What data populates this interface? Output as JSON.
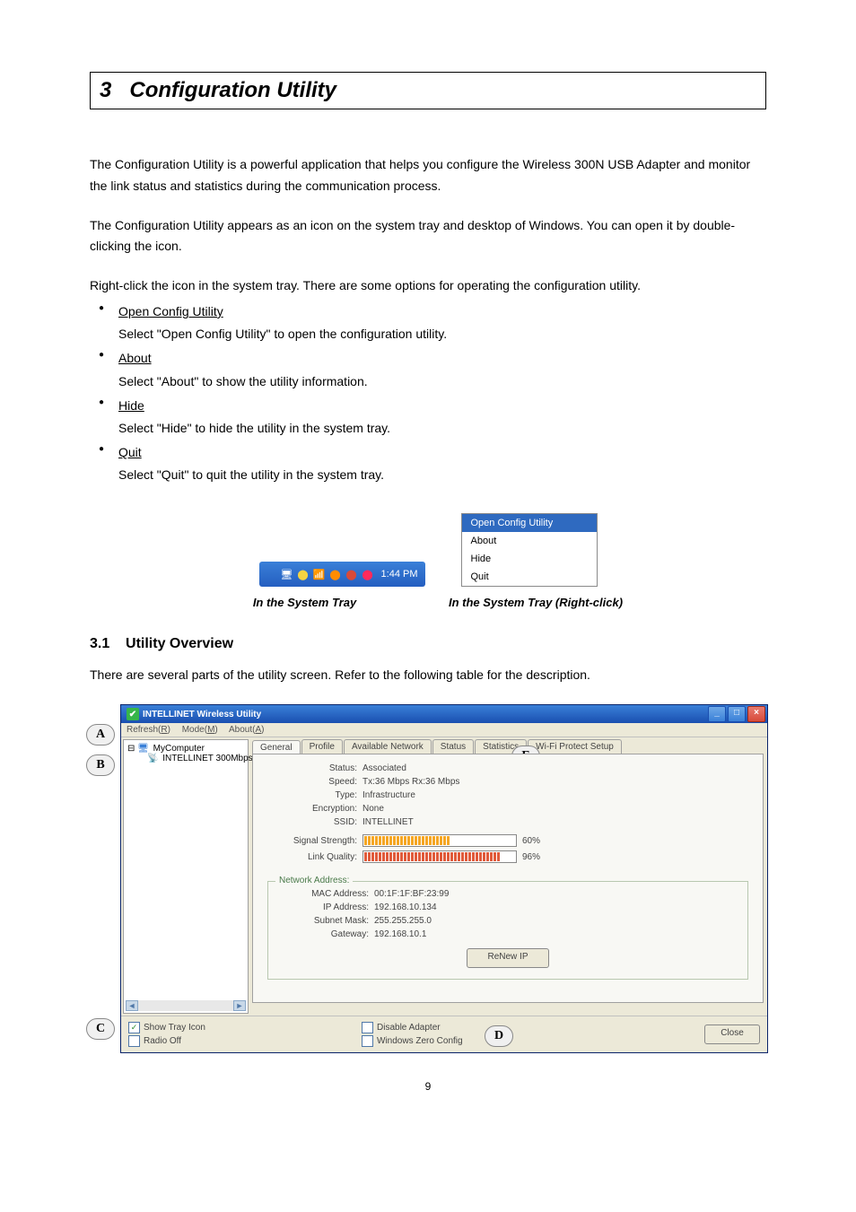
{
  "chapter": {
    "number": "3",
    "title": "Configuration Utility"
  },
  "intro1": "The Configuration Utility is a powerful application that helps you configure the Wireless 300N USB Adapter and monitor the link status and statistics during the communication process.",
  "intro2": "The Configuration Utility appears as an icon on the system tray and desktop of Windows. You can open it by double-clicking the icon.",
  "intro3": "Right-click the icon in the system tray. There are some options for operating the configuration utility.",
  "options": [
    {
      "name": "Open Config Utility",
      "desc": "Select \"Open Config Utility\" to open the configuration utility."
    },
    {
      "name": "About",
      "desc": "Select \"About\" to show the utility information."
    },
    {
      "name": "Hide",
      "desc": "Select \"Hide\" to hide the utility in the system tray."
    },
    {
      "name": "Quit",
      "desc": "Select \"Quit\" to quit the utility in the system tray."
    }
  ],
  "systray": {
    "time": "1:44 PM",
    "icon_colors": [
      "#ffffff",
      "#f5d442",
      "#36b54a",
      "#ff8c00",
      "#d84a3a",
      "#ff2a5c"
    ]
  },
  "context_menu": {
    "items": [
      "Open Config Utility",
      "About",
      "Hide",
      "Quit"
    ],
    "highlighted_index": 0
  },
  "captions": {
    "left": "In the System Tray",
    "right": "In the System Tray (Right-click)"
  },
  "section": {
    "number": "3.1",
    "title": "Utility Overview"
  },
  "section_intro": "There are several parts of the utility screen. Refer to the following table for the description.",
  "markers": {
    "A": "A",
    "B": "B",
    "C": "C",
    "D": "D",
    "E": "E"
  },
  "util": {
    "title": "INTELLINET Wireless Utility",
    "menubar": {
      "refresh": "Refresh(R)",
      "mode": "Mode(M)",
      "about": "About(A)",
      "underline": {
        "r": "R",
        "m": "M",
        "a": "A"
      }
    },
    "tree": {
      "root": "MyComputer",
      "child": "INTELLINET 300Mbps '"
    },
    "tabs": [
      "General",
      "Profile",
      "Available Network",
      "Status",
      "Statistics",
      "Wi-Fi Protect Setup"
    ],
    "active_tab": 0,
    "general": {
      "status_label": "Status:",
      "status_value": "Associated",
      "speed_label": "Speed:",
      "speed_value": "Tx:36 Mbps Rx:36 Mbps",
      "type_label": "Type:",
      "type_value": "Infrastructure",
      "encryption_label": "Encryption:",
      "encryption_value": "None",
      "ssid_label": "SSID:",
      "ssid_value": "INTELLINET",
      "signal_label": "Signal Strength:",
      "signal_pct_text": "60%",
      "signal_pct": 60,
      "signal_color": "#f5a623",
      "link_label": "Link Quality:",
      "link_pct_text": "96%",
      "link_pct": 96,
      "link_color": "#e05a3a"
    },
    "network_address": {
      "legend": "Network Address:",
      "mac_label": "MAC Address:",
      "mac_value": "00:1F:1F:BF:23:99",
      "ip_label": "IP Address:",
      "ip_value": "192.168.10.134",
      "subnet_label": "Subnet Mask:",
      "subnet_value": "255.255.255.0",
      "gateway_label": "Gateway:",
      "gateway_value": "192.168.10.1",
      "renew_label": "ReNew IP"
    },
    "footer": {
      "show_tray_label": "Show Tray Icon",
      "show_tray_checked": true,
      "radio_off_label": "Radio Off",
      "radio_off_checked": false,
      "disable_adapter_label": "Disable Adapter",
      "disable_adapter_checked": false,
      "wzc_label": "Windows Zero Config",
      "wzc_checked": false,
      "close_label": "Close"
    }
  },
  "page_number": "9"
}
